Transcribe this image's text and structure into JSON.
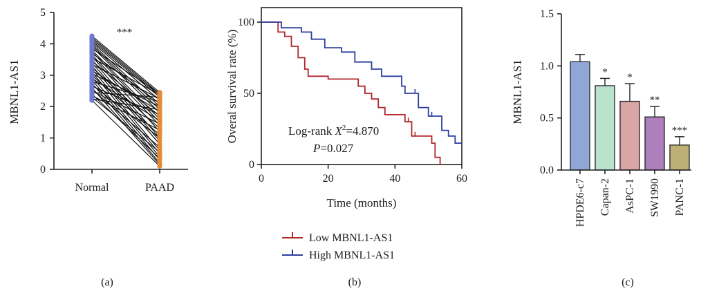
{
  "colors": {
    "normal": "#6f79cf",
    "paad": "#e38b3b",
    "low": "#b2262b",
    "high": "#2c3ea0",
    "bars": [
      "#8fa8d8",
      "#b9e3cc",
      "#d9a5a5",
      "#ad7fbd",
      "#bdb076"
    ]
  },
  "chart_data": [
    {
      "type": "scatter",
      "panel_label": "(a)",
      "ylabel": "MBNL1-AS1",
      "categories": [
        "Normal",
        "PAAD"
      ],
      "ylim": [
        0,
        5
      ],
      "yticks": [
        "0",
        "1",
        "2",
        "3",
        "4",
        "5"
      ],
      "significance": "***",
      "paired": true,
      "pairs": [
        [
          4.25,
          2.45
        ],
        [
          4.2,
          2.4
        ],
        [
          4.15,
          2.35
        ],
        [
          4.1,
          2.3
        ],
        [
          4.05,
          2.2
        ],
        [
          4.0,
          2.0
        ],
        [
          3.95,
          1.9
        ],
        [
          3.9,
          1.8
        ],
        [
          3.85,
          2.42
        ],
        [
          3.8,
          1.6
        ],
        [
          3.75,
          1.5
        ],
        [
          3.7,
          2.1
        ],
        [
          3.65,
          1.4
        ],
        [
          3.6,
          1.2
        ],
        [
          3.55,
          2.38
        ],
        [
          3.5,
          1.0
        ],
        [
          3.45,
          1.7
        ],
        [
          3.4,
          0.9
        ],
        [
          3.35,
          2.25
        ],
        [
          3.3,
          0.8
        ],
        [
          3.25,
          1.3
        ],
        [
          3.2,
          0.6
        ],
        [
          3.15,
          1.85
        ],
        [
          3.1,
          0.5
        ],
        [
          3.05,
          2.0
        ],
        [
          3.0,
          1.1
        ],
        [
          2.95,
          0.4
        ],
        [
          2.9,
          1.55
        ],
        [
          2.85,
          0.3
        ],
        [
          2.8,
          2.15
        ],
        [
          2.75,
          0.2
        ],
        [
          2.7,
          1.0
        ],
        [
          2.65,
          1.75
        ],
        [
          2.6,
          0.15
        ],
        [
          2.55,
          0.7
        ],
        [
          2.5,
          1.45
        ],
        [
          2.45,
          2.3
        ],
        [
          2.4,
          0.35
        ],
        [
          2.35,
          1.25
        ],
        [
          2.3,
          0.55
        ],
        [
          2.25,
          1.9
        ],
        [
          2.2,
          0.1
        ]
      ]
    },
    {
      "type": "line",
      "panel_label": "(b)",
      "xlabel": "Time (months)",
      "ylabel": "Overal survival rate (%)",
      "xlim": [
        0,
        60
      ],
      "ylim": [
        0,
        100
      ],
      "xticks": [
        "0",
        "20",
        "40",
        "60"
      ],
      "yticks": [
        "0",
        "50",
        "100"
      ],
      "annotation": {
        "line1_prefix": "Log-rank ",
        "stat_symbol": "X",
        "stat_sup": "2",
        "line1_value": "=4.870",
        "p_symbol": "P",
        "p_value": "=0.027"
      },
      "series": [
        {
          "name": "Low MBNL1-AS1",
          "color": "#b2262b",
          "x": [
            0,
            5,
            5,
            7,
            7,
            9,
            9,
            11,
            11,
            13,
            13,
            14,
            14,
            20,
            20,
            29,
            29,
            31,
            31,
            33,
            33,
            35,
            35,
            37,
            37,
            43,
            43,
            45,
            45,
            51,
            51,
            52,
            52,
            53.5,
            53.5
          ],
          "y": [
            100,
            100,
            93,
            93,
            90,
            90,
            83,
            83,
            75,
            75,
            67,
            67,
            62,
            62,
            60,
            60,
            55,
            55,
            50,
            50,
            46,
            46,
            40,
            40,
            35,
            35,
            30,
            30,
            20,
            20,
            15,
            15,
            5,
            5,
            0
          ],
          "censor_x": [
            31,
            44,
            46
          ]
        },
        {
          "name": "High MBNL1-AS1",
          "color": "#2c3ea0",
          "x": [
            0,
            6,
            6,
            12,
            12,
            15,
            15,
            19,
            19,
            24,
            24,
            28,
            28,
            33,
            33,
            36,
            36,
            42,
            42,
            43,
            43,
            47,
            47,
            50,
            50,
            54,
            54,
            56,
            56,
            58,
            58,
            60
          ],
          "y": [
            100,
            100,
            96,
            96,
            93,
            93,
            88,
            88,
            82,
            82,
            79,
            79,
            72,
            72,
            67,
            67,
            62,
            62,
            55,
            55,
            50,
            50,
            40,
            40,
            34,
            34,
            24,
            24,
            20,
            20,
            15,
            15
          ],
          "censor_x": [
            46,
            51
          ]
        }
      ]
    },
    {
      "type": "bar",
      "panel_label": "(c)",
      "ylabel": "MBNL1-AS1",
      "categories": [
        "HPDE6-c7",
        "Capan-2",
        "AsPC-1",
        "SW1990",
        "PANC-1"
      ],
      "values": [
        1.04,
        0.81,
        0.66,
        0.51,
        0.24
      ],
      "errors": [
        0.07,
        0.07,
        0.17,
        0.1,
        0.08
      ],
      "significance": [
        "",
        "*",
        "*",
        "**",
        "***"
      ],
      "ylim": [
        0,
        1.5
      ],
      "yticks": [
        "0.0",
        "0.5",
        "1.0",
        "1.5"
      ]
    }
  ]
}
